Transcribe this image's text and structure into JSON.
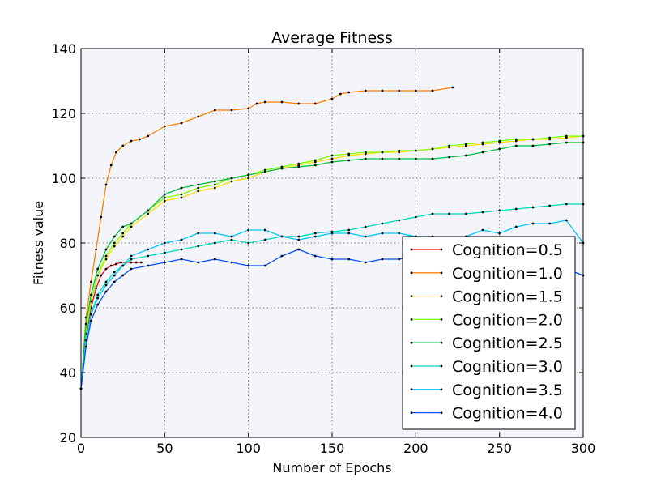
{
  "chart_data": {
    "type": "line",
    "title": "Average Fitness",
    "xlabel": "Number of Epochs",
    "ylabel": "Fitness value",
    "xlim": [
      0,
      300
    ],
    "ylim": [
      20,
      140
    ],
    "xticks": [
      0,
      50,
      100,
      150,
      200,
      250,
      300
    ],
    "yticks": [
      20,
      40,
      60,
      80,
      100,
      120,
      140
    ],
    "grid": true,
    "legend_position": "lower-right",
    "background": "#f3f5fa",
    "series": [
      {
        "name": "Cognition=0.5",
        "color": "#ff0000",
        "x": [
          0,
          3,
          6,
          9,
          12,
          15,
          18,
          21,
          24,
          27,
          30,
          33,
          36
        ],
        "y": [
          35,
          50,
          60,
          66,
          70,
          72,
          73,
          73.5,
          74,
          74,
          74,
          74,
          74
        ]
      },
      {
        "name": "Cognition=1.0",
        "color": "#ff8000",
        "x": [
          0,
          3,
          6,
          9,
          12,
          15,
          18,
          21,
          25,
          30,
          35,
          40,
          50,
          60,
          70,
          80,
          90,
          100,
          105,
          110,
          120,
          130,
          140,
          150,
          155,
          160,
          170,
          180,
          190,
          200,
          210,
          222
        ],
        "y": [
          35,
          57,
          68,
          78,
          88,
          98,
          104,
          108,
          110,
          111.5,
          112,
          113,
          116,
          117,
          119,
          121,
          121,
          121.5,
          123,
          123.5,
          123.5,
          123,
          123,
          124.5,
          126,
          126.5,
          127,
          127,
          127,
          127,
          127,
          128
        ]
      },
      {
        "name": "Cognition=1.5",
        "color": "#ffe000",
        "x": [
          0,
          3,
          6,
          10,
          15,
          20,
          25,
          30,
          40,
          50,
          60,
          70,
          80,
          90,
          100,
          110,
          120,
          130,
          140,
          150,
          160,
          170,
          180,
          190,
          200,
          210,
          220,
          230,
          240,
          250,
          260,
          270,
          280,
          290,
          300
        ],
        "y": [
          35,
          52,
          62,
          70,
          75,
          79,
          82,
          85,
          89,
          93,
          94,
          96,
          97,
          99,
          100,
          102,
          103,
          104,
          105,
          106,
          107,
          107.5,
          108,
          108,
          108.5,
          109,
          109.5,
          110,
          110.5,
          111,
          111.5,
          112,
          112,
          112.5,
          113
        ]
      },
      {
        "name": "Cognition=2.0",
        "color": "#80ff00",
        "x": [
          0,
          3,
          6,
          10,
          15,
          20,
          25,
          30,
          40,
          50,
          60,
          70,
          80,
          90,
          100,
          110,
          120,
          130,
          140,
          150,
          160,
          170,
          180,
          190,
          200,
          210,
          220,
          230,
          240,
          250,
          260,
          270,
          280,
          290,
          300
        ],
        "y": [
          35,
          52,
          62,
          70,
          76,
          80,
          83,
          86,
          90,
          94,
          95,
          97,
          98,
          100,
          101,
          102.5,
          103.5,
          104.5,
          105.5,
          107,
          107.5,
          108,
          108,
          108.5,
          108.5,
          109,
          110,
          110.5,
          111,
          111.5,
          112,
          112,
          112.5,
          113,
          113
        ]
      },
      {
        "name": "Cognition=2.5",
        "color": "#00c040",
        "x": [
          0,
          3,
          6,
          10,
          15,
          20,
          25,
          30,
          40,
          50,
          60,
          70,
          80,
          90,
          100,
          110,
          120,
          130,
          140,
          150,
          160,
          170,
          180,
          190,
          200,
          210,
          220,
          230,
          240,
          250,
          260,
          270,
          280,
          290,
          300
        ],
        "y": [
          35,
          55,
          64,
          72,
          78,
          82,
          85,
          86,
          90,
          95,
          97,
          98,
          99,
          100,
          101,
          102,
          103,
          103.5,
          104,
          105,
          105.5,
          106,
          106,
          106,
          106,
          106,
          106.5,
          107,
          108,
          109,
          110,
          110,
          110.5,
          111,
          111
        ]
      },
      {
        "name": "Cognition=3.0",
        "color": "#00d8c0",
        "x": [
          0,
          3,
          6,
          10,
          15,
          20,
          25,
          30,
          40,
          50,
          60,
          70,
          80,
          90,
          100,
          110,
          120,
          130,
          140,
          150,
          160,
          170,
          180,
          190,
          200,
          210,
          220,
          230,
          240,
          250,
          260,
          270,
          280,
          290,
          300
        ],
        "y": [
          35,
          50,
          58,
          64,
          68,
          71,
          73,
          75,
          76,
          77,
          78,
          79,
          80,
          81,
          80,
          81,
          82,
          82,
          83,
          83.5,
          84,
          85,
          86,
          87,
          88,
          89,
          89,
          89,
          89.5,
          90,
          90.5,
          91,
          91.5,
          92,
          92
        ]
      },
      {
        "name": "Cognition=3.5",
        "color": "#00c8ff",
        "x": [
          0,
          3,
          6,
          10,
          15,
          20,
          25,
          30,
          40,
          50,
          60,
          70,
          80,
          90,
          100,
          110,
          120,
          130,
          140,
          150,
          160,
          170,
          180,
          190,
          200,
          210,
          220,
          230,
          240,
          250,
          260,
          270,
          280,
          290,
          300
        ],
        "y": [
          35,
          50,
          58,
          63,
          67,
          70,
          73,
          76,
          78,
          80,
          81,
          83,
          83,
          82,
          84,
          84,
          82,
          81,
          82,
          83,
          83,
          82,
          83,
          83,
          82,
          82,
          81,
          82,
          84,
          83,
          85,
          86,
          86,
          87,
          80
        ]
      },
      {
        "name": "Cognition=4.0",
        "color": "#0050ff",
        "x": [
          0,
          3,
          6,
          10,
          15,
          20,
          25,
          30,
          40,
          50,
          60,
          70,
          80,
          90,
          100,
          110,
          120,
          130,
          140,
          150,
          160,
          170,
          180,
          190,
          200,
          210,
          220,
          230,
          240,
          250,
          260,
          270,
          280,
          290,
          300
        ],
        "y": [
          35,
          48,
          56,
          61,
          65,
          68,
          70,
          72,
          73,
          74,
          75,
          74,
          75,
          74,
          73,
          73,
          76,
          78,
          76,
          75,
          75,
          74,
          75,
          75,
          76,
          75,
          76,
          75,
          75,
          76,
          75,
          75,
          74,
          72,
          70
        ]
      }
    ]
  }
}
